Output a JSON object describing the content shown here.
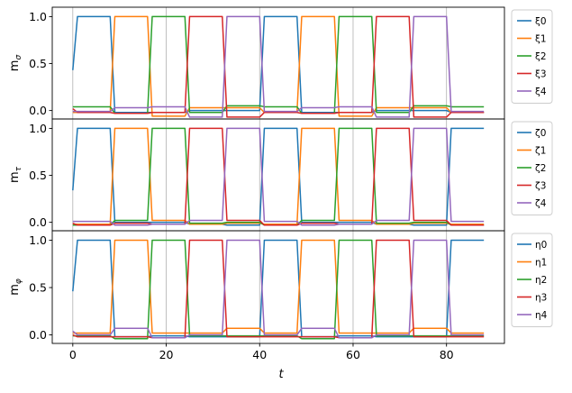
{
  "chart_data": {
    "type": "line",
    "xlabel": "t",
    "xlim": [
      -4.4,
      92.4
    ],
    "xticks": [
      0,
      20,
      40,
      60,
      80
    ],
    "grid": "vertical",
    "legend_position": "outside-right",
    "colors": [
      "#1f77b4",
      "#ff7f0e",
      "#2ca02c",
      "#d62728",
      "#9467bd"
    ],
    "subplots": [
      {
        "ylabel": "m_σ",
        "ylabel_main": "m",
        "ylabel_sub": "σ",
        "ylim": [
          -0.09,
          1.1
        ],
        "yticks": [
          "0.0",
          "0.5",
          "1.0"
        ],
        "series": [
          {
            "name": "ξ0",
            "x": [
              0,
              1,
              8,
              9,
              16,
              17,
              24,
              25,
              32,
              33,
              40,
              41,
              48,
              49,
              56,
              57,
              64,
              65,
              72,
              73,
              80,
              81,
              88
            ],
            "y": [
              0.43,
              1.0,
              1.0,
              -0.02,
              -0.02,
              -0.02,
              -0.02,
              0.0,
              0.0,
              0.0,
              0.0,
              1.0,
              1.0,
              -0.02,
              -0.02,
              -0.02,
              -0.02,
              0.0,
              0.0,
              0.0,
              0.0,
              -0.02,
              -0.02
            ]
          },
          {
            "name": "ξ1",
            "x": [
              0,
              1,
              8,
              9,
              16,
              17,
              24,
              25,
              32,
              33,
              40,
              41,
              48,
              49,
              56,
              57,
              64,
              65,
              72,
              73,
              80,
              81,
              88
            ],
            "y": [
              -0.02,
              -0.02,
              -0.02,
              1.0,
              1.0,
              -0.06,
              -0.06,
              0.03,
              0.03,
              0.03,
              0.03,
              -0.02,
              -0.02,
              1.0,
              1.0,
              -0.06,
              -0.06,
              0.03,
              0.03,
              0.03,
              0.03,
              -0.02,
              -0.02
            ]
          },
          {
            "name": "ξ2",
            "x": [
              0,
              1,
              8,
              9,
              16,
              17,
              24,
              25,
              32,
              33,
              40,
              41,
              48,
              49,
              56,
              57,
              64,
              65,
              72,
              73,
              80,
              81,
              88
            ],
            "y": [
              0.04,
              0.04,
              0.04,
              -0.03,
              -0.03,
              1.0,
              1.0,
              -0.02,
              -0.02,
              0.05,
              0.05,
              0.04,
              0.04,
              -0.03,
              -0.03,
              1.0,
              1.0,
              -0.02,
              -0.02,
              0.05,
              0.05,
              0.04,
              0.04
            ]
          },
          {
            "name": "ξ3",
            "x": [
              0,
              1,
              8,
              9,
              16,
              17,
              24,
              25,
              32,
              33,
              40,
              41,
              48,
              49,
              56,
              57,
              64,
              65,
              72,
              73,
              80,
              81,
              88
            ],
            "y": [
              0.02,
              -0.02,
              -0.02,
              -0.03,
              -0.03,
              -0.02,
              -0.02,
              1.0,
              1.0,
              -0.07,
              -0.07,
              -0.02,
              -0.02,
              -0.03,
              -0.03,
              -0.02,
              -0.02,
              1.0,
              1.0,
              -0.07,
              -0.07,
              -0.02,
              -0.02
            ]
          },
          {
            "name": "ξ4",
            "x": [
              0,
              1,
              8,
              9,
              16,
              17,
              24,
              25,
              32,
              33,
              40,
              41,
              48,
              49,
              56,
              57,
              64,
              65,
              72,
              73,
              80,
              81,
              88
            ],
            "y": [
              -0.01,
              -0.01,
              -0.01,
              0.03,
              0.03,
              0.04,
              0.04,
              -0.07,
              -0.07,
              1.0,
              1.0,
              -0.01,
              -0.01,
              0.03,
              0.03,
              0.04,
              0.04,
              -0.07,
              -0.07,
              1.0,
              1.0,
              -0.01,
              -0.01
            ]
          }
        ]
      },
      {
        "ylabel": "m_τ",
        "ylabel_main": "m",
        "ylabel_sub": "τ",
        "ylim": [
          -0.09,
          1.1
        ],
        "yticks": [
          "0.0",
          "0.5",
          "1.0"
        ],
        "series": [
          {
            "name": "ζ0",
            "x": [
              0,
              1,
              8,
              9,
              16,
              17,
              24,
              25,
              32,
              33,
              40,
              41,
              48,
              49,
              56,
              57,
              64,
              65,
              72,
              73,
              80,
              81,
              88
            ],
            "y": [
              0.34,
              1.0,
              1.0,
              0.0,
              0.0,
              0.0,
              0.0,
              -0.02,
              -0.02,
              -0.03,
              -0.03,
              1.0,
              1.0,
              0.0,
              0.0,
              0.0,
              0.0,
              -0.02,
              -0.02,
              -0.03,
              -0.03,
              1.0,
              1.0
            ]
          },
          {
            "name": "ζ1",
            "x": [
              0,
              1,
              8,
              9,
              16,
              17,
              24,
              25,
              32,
              33,
              40,
              41,
              48,
              49,
              56,
              57,
              64,
              65,
              72,
              73,
              80,
              81,
              88
            ],
            "y": [
              -0.02,
              -0.02,
              -0.02,
              1.0,
              1.0,
              0.02,
              0.02,
              -0.02,
              -0.02,
              -0.01,
              -0.01,
              -0.02,
              -0.02,
              1.0,
              1.0,
              0.02,
              0.02,
              -0.02,
              -0.02,
              -0.01,
              -0.01,
              -0.02,
              -0.02
            ]
          },
          {
            "name": "ζ2",
            "x": [
              0,
              1,
              8,
              9,
              16,
              17,
              24,
              25,
              32,
              33,
              40,
              41,
              48,
              49,
              56,
              57,
              64,
              65,
              72,
              73,
              80,
              81,
              88
            ],
            "y": [
              -0.03,
              -0.03,
              -0.03,
              0.02,
              0.02,
              1.0,
              1.0,
              -0.01,
              -0.01,
              0.0,
              0.0,
              -0.03,
              -0.03,
              0.02,
              0.02,
              1.0,
              1.0,
              -0.01,
              -0.01,
              0.0,
              0.0,
              -0.03,
              -0.03
            ]
          },
          {
            "name": "ζ3",
            "x": [
              0,
              1,
              8,
              9,
              16,
              17,
              24,
              25,
              32,
              33,
              40,
              41,
              48,
              49,
              56,
              57,
              64,
              65,
              72,
              73,
              80,
              81,
              88
            ],
            "y": [
              -0.01,
              -0.03,
              -0.03,
              -0.01,
              -0.01,
              -0.02,
              -0.02,
              1.0,
              1.0,
              0.02,
              0.02,
              -0.03,
              -0.03,
              -0.01,
              -0.01,
              -0.02,
              -0.02,
              1.0,
              1.0,
              0.02,
              0.02,
              -0.03,
              -0.03
            ]
          },
          {
            "name": "ζ4",
            "x": [
              0,
              1,
              8,
              9,
              16,
              17,
              24,
              25,
              32,
              33,
              40,
              41,
              48,
              49,
              56,
              57,
              64,
              65,
              72,
              73,
              80,
              81,
              88
            ],
            "y": [
              0.01,
              0.01,
              0.01,
              -0.03,
              -0.03,
              -0.02,
              -0.02,
              0.02,
              0.02,
              1.0,
              1.0,
              0.01,
              0.01,
              -0.03,
              -0.03,
              -0.02,
              -0.02,
              0.02,
              0.02,
              1.0,
              1.0,
              0.01,
              0.01
            ]
          }
        ]
      },
      {
        "ylabel": "m_φ",
        "ylabel_main": "m",
        "ylabel_sub": "φ",
        "ylim": [
          -0.09,
          1.1
        ],
        "yticks": [
          "0.0",
          "0.5",
          "1.0"
        ],
        "series": [
          {
            "name": "η0",
            "x": [
              0,
              1,
              8,
              9,
              16,
              17,
              24,
              25,
              32,
              33,
              40,
              41,
              48,
              49,
              56,
              57,
              64,
              65,
              72,
              73,
              80,
              81,
              88
            ],
            "y": [
              0.46,
              1.0,
              1.0,
              -0.02,
              -0.02,
              -0.01,
              -0.01,
              -0.02,
              -0.02,
              -0.02,
              -0.02,
              1.0,
              1.0,
              -0.02,
              -0.02,
              -0.01,
              -0.01,
              -0.02,
              -0.02,
              -0.02,
              -0.02,
              1.0,
              1.0
            ]
          },
          {
            "name": "η1",
            "x": [
              0,
              1,
              8,
              9,
              16,
              17,
              24,
              25,
              32,
              33,
              40,
              41,
              48,
              49,
              56,
              57,
              64,
              65,
              72,
              73,
              80,
              81,
              88
            ],
            "y": [
              0.02,
              0.02,
              0.02,
              1.0,
              1.0,
              0.02,
              0.02,
              0.02,
              0.02,
              0.07,
              0.07,
              0.02,
              0.02,
              1.0,
              1.0,
              0.02,
              0.02,
              0.02,
              0.02,
              0.07,
              0.07,
              0.02,
              0.02
            ]
          },
          {
            "name": "η2",
            "x": [
              0,
              1,
              8,
              9,
              16,
              17,
              24,
              25,
              32,
              33,
              40,
              41,
              48,
              49,
              56,
              57,
              64,
              65,
              72,
              73,
              80,
              81,
              88
            ],
            "y": [
              -0.01,
              -0.01,
              -0.01,
              -0.04,
              -0.04,
              1.0,
              1.0,
              -0.01,
              -0.01,
              -0.01,
              -0.01,
              -0.01,
              -0.01,
              -0.04,
              -0.04,
              1.0,
              1.0,
              -0.01,
              -0.01,
              -0.01,
              -0.01,
              -0.01,
              -0.01
            ]
          },
          {
            "name": "η3",
            "x": [
              0,
              1,
              8,
              9,
              16,
              17,
              24,
              25,
              32,
              33,
              40,
              41,
              48,
              49,
              56,
              57,
              64,
              65,
              72,
              73,
              80,
              81,
              88
            ],
            "y": [
              0.0,
              -0.02,
              -0.02,
              -0.02,
              -0.02,
              -0.03,
              -0.03,
              1.0,
              1.0,
              -0.02,
              -0.02,
              -0.02,
              -0.02,
              -0.02,
              -0.02,
              -0.03,
              -0.03,
              1.0,
              1.0,
              -0.02,
              -0.02,
              -0.02,
              -0.02
            ]
          },
          {
            "name": "η4",
            "x": [
              0,
              1,
              8,
              9,
              16,
              17,
              24,
              25,
              32,
              33,
              40,
              41,
              48,
              49,
              56,
              57,
              64,
              65,
              72,
              73,
              80,
              81,
              88
            ],
            "y": [
              0.04,
              0.0,
              0.0,
              0.07,
              0.07,
              -0.03,
              -0.03,
              0.0,
              0.0,
              1.0,
              1.0,
              0.0,
              0.0,
              0.07,
              0.07,
              -0.03,
              -0.03,
              0.0,
              0.0,
              1.0,
              1.0,
              0.0,
              0.0
            ]
          }
        ]
      }
    ]
  }
}
